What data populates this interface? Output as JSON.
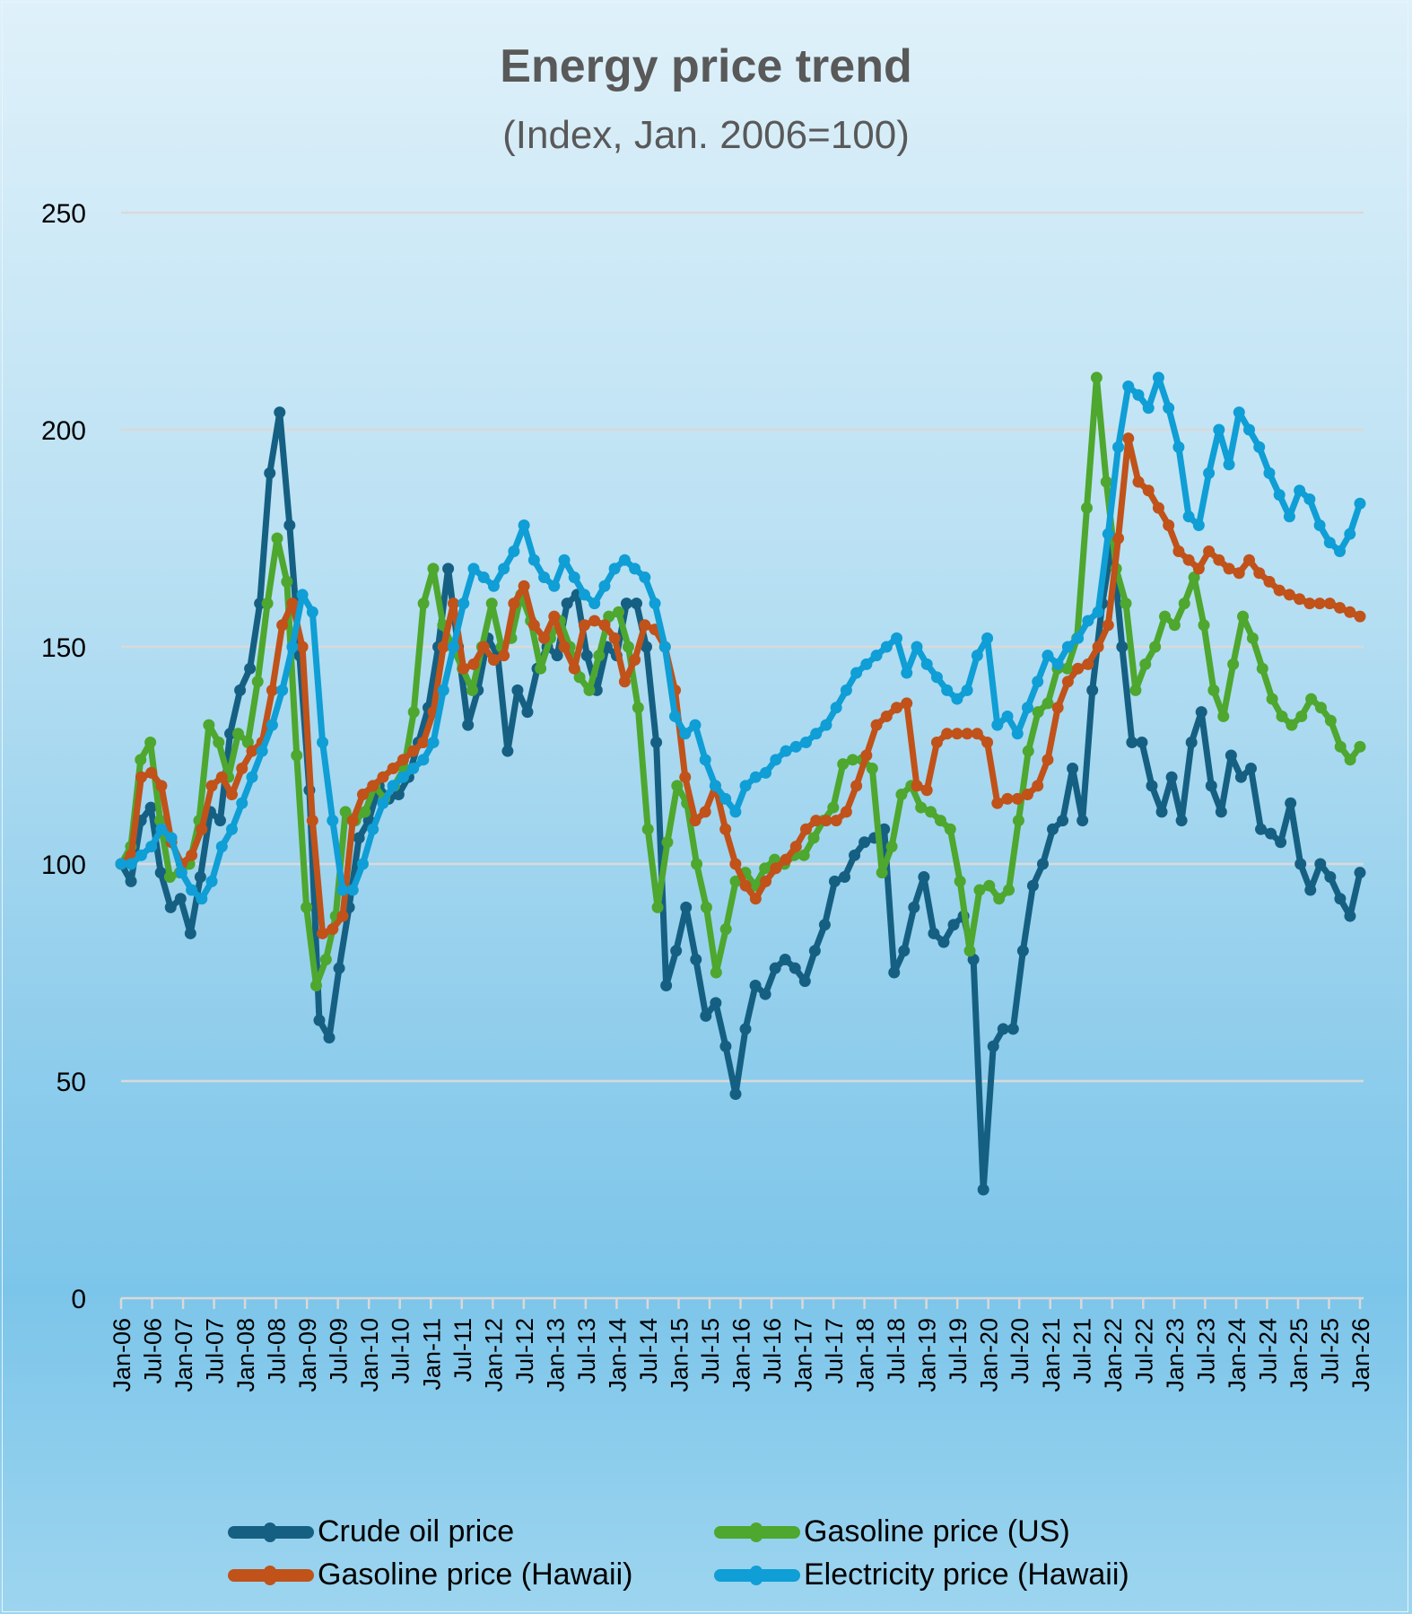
{
  "chart_data": {
    "type": "line",
    "title": "Energy price trend",
    "subtitle": "(Index, Jan. 2006=100)",
    "xlabel": "",
    "ylabel": "",
    "ylim": [
      0,
      250
    ],
    "yticks": [
      0,
      50,
      100,
      150,
      200,
      250
    ],
    "grid": true,
    "legend_position": "bottom",
    "x_start": "Jan-06",
    "x_end": "Jan-26",
    "x_step_months": 2,
    "xtick_labels": [
      "Jan-06",
      "Jul-06",
      "Jan-07",
      "Jul-07",
      "Jan-08",
      "Jul-08",
      "Jan-09",
      "Jul-09",
      "Jan-10",
      "Jul-10",
      "Jan-11",
      "Jul-11",
      "Jan-12",
      "Jul-12",
      "Jan-13",
      "Jul-13",
      "Jan-14",
      "Jul-14",
      "Jan-15",
      "Jul-15",
      "Jan-16",
      "Jul-16",
      "Jan-17",
      "Jul-17",
      "Jan-18",
      "Jul-18",
      "Jan-19",
      "Jul-19",
      "Jan-20",
      "Jul-20",
      "Jan-21",
      "Jul-21",
      "Jan-22",
      "Jul-22",
      "Jan-23",
      "Jul-23",
      "Jan-24",
      "Jul-24",
      "Jan-25",
      "Jul-25",
      "Jan-26"
    ],
    "series": [
      {
        "name": "Crude oil price",
        "color": "#156082",
        "values": [
          100,
          96,
          110,
          113,
          98,
          90,
          92,
          84,
          97,
          112,
          110,
          130,
          140,
          145,
          160,
          190,
          204,
          178,
          148,
          117,
          64,
          60,
          76,
          90,
          106,
          110,
          118,
          115,
          116,
          120,
          128,
          136,
          150,
          168,
          150,
          132,
          140,
          152,
          148,
          126,
          140,
          135,
          145,
          150,
          148,
          160,
          162,
          148,
          140,
          150,
          148,
          160,
          160,
          150,
          128,
          72,
          80,
          90,
          78,
          65,
          68,
          58,
          47,
          62,
          72,
          70,
          76,
          78,
          76,
          73,
          80,
          86,
          96,
          97,
          102,
          105,
          106,
          108,
          75,
          80,
          90,
          97,
          84,
          82,
          86,
          88,
          78,
          25,
          58,
          62,
          62,
          80,
          95,
          100,
          108,
          110,
          122,
          110,
          140,
          160,
          174,
          150,
          128,
          128,
          118,
          112,
          120,
          110,
          128,
          135,
          118,
          112,
          125,
          120,
          122,
          108,
          107,
          105,
          114,
          100,
          94,
          100,
          97,
          92,
          88,
          98
        ]
      },
      {
        "name": "Gasoline price (US)",
        "color": "#4ea72e",
        "values": [
          100,
          104,
          124,
          128,
          110,
          97,
          98,
          100,
          110,
          132,
          128,
          120,
          130,
          128,
          142,
          160,
          175,
          165,
          125,
          90,
          72,
          78,
          88,
          112,
          110,
          112,
          118,
          115,
          118,
          122,
          135,
          160,
          168,
          155,
          150,
          145,
          140,
          150,
          160,
          150,
          152,
          162,
          156,
          145,
          152,
          156,
          150,
          143,
          140,
          148,
          157,
          158,
          150,
          136,
          108,
          90,
          105,
          118,
          114,
          100,
          90,
          75,
          85,
          96,
          98,
          95,
          99,
          101,
          100,
          102,
          102,
          106,
          110,
          113,
          123,
          124,
          124,
          122,
          98,
          104,
          116,
          118,
          113,
          112,
          110,
          108,
          96,
          80,
          94,
          95,
          92,
          94,
          110,
          126,
          135,
          137,
          145,
          145,
          152,
          182,
          212,
          188,
          168,
          160,
          140,
          146,
          150,
          157,
          155,
          160,
          166,
          155,
          140,
          134,
          146,
          157,
          152,
          145,
          138,
          134,
          132,
          134,
          138,
          136,
          133,
          127,
          124,
          127
        ]
      },
      {
        "name": "Gasoline price (Hawaii)",
        "color": "#c0521a",
        "values": [
          100,
          102,
          120,
          121,
          118,
          105,
          100,
          102,
          108,
          118,
          120,
          116,
          122,
          126,
          128,
          140,
          155,
          160,
          150,
          110,
          84,
          85,
          88,
          110,
          116,
          118,
          120,
          122,
          124,
          126,
          128,
          135,
          150,
          160,
          145,
          146,
          150,
          147,
          148,
          160,
          164,
          155,
          152,
          157,
          150,
          145,
          155,
          156,
          155,
          152,
          142,
          147,
          155,
          154,
          150,
          140,
          120,
          110,
          112,
          118,
          108,
          100,
          95,
          92,
          96,
          99,
          101,
          104,
          108,
          110,
          110,
          110,
          112,
          118,
          125,
          132,
          134,
          136,
          137,
          118,
          117,
          128,
          130,
          130,
          130,
          130,
          128,
          114,
          115,
          115,
          116,
          118,
          124,
          136,
          142,
          145,
          146,
          150,
          155,
          175,
          198,
          188,
          186,
          182,
          178,
          172,
          170,
          168,
          172,
          170,
          168,
          167,
          170,
          167,
          165,
          163,
          162,
          161,
          160,
          160,
          160,
          159,
          158,
          157
        ]
      },
      {
        "name": "Electricity price (Hawaii)",
        "color": "#0f9ed5",
        "values": [
          100,
          100,
          102,
          104,
          108,
          106,
          98,
          94,
          92,
          96,
          104,
          108,
          114,
          120,
          126,
          132,
          140,
          150,
          162,
          158,
          128,
          110,
          94,
          94,
          100,
          108,
          114,
          118,
          120,
          122,
          124,
          128,
          140,
          150,
          160,
          168,
          166,
          164,
          168,
          172,
          178,
          170,
          166,
          164,
          170,
          166,
          162,
          160,
          164,
          168,
          170,
          168,
          166,
          160,
          150,
          134,
          130,
          132,
          124,
          118,
          115,
          112,
          118,
          120,
          121,
          124,
          126,
          127,
          128,
          130,
          132,
          136,
          140,
          144,
          146,
          148,
          150,
          152,
          144,
          150,
          146,
          143,
          140,
          138,
          140,
          148,
          152,
          132,
          134,
          130,
          136,
          142,
          148,
          146,
          150,
          152,
          156,
          158,
          176,
          196,
          210,
          208,
          205,
          212,
          205,
          196,
          180,
          178,
          190,
          200,
          192,
          204,
          200,
          196,
          190,
          185,
          180,
          186,
          184,
          178,
          174,
          172,
          176,
          183
        ]
      }
    ]
  },
  "legend": [
    {
      "label": "Crude oil price",
      "color": "#156082"
    },
    {
      "label": "Gasoline price (US)",
      "color": "#4ea72e"
    },
    {
      "label": "Gasoline price (Hawaii)",
      "color": "#c0521a"
    },
    {
      "label": "Electricity price (Hawaii)",
      "color": "#0f9ed5"
    }
  ]
}
